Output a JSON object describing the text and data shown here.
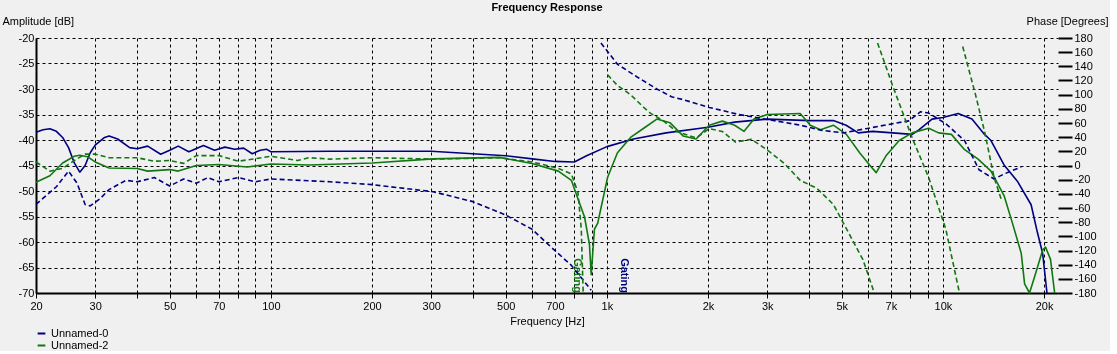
{
  "chart_data": {
    "type": "line",
    "title": "Frequency Response",
    "xlabel": "Frequency [Hz]",
    "ylabel": "Amplitude [dB]",
    "y2label": "Phase [Degrees]",
    "log": "x",
    "grid": true,
    "legend": "bottom",
    "xlim": [
      20,
      22000
    ],
    "xticks": [
      20,
      30,
      {
        "value": 40,
        "label": null
      },
      50,
      {
        "value": 60,
        "label": null
      },
      70,
      {
        "value": 80,
        "label": null
      },
      {
        "value": 90,
        "label": null
      },
      100,
      200,
      300,
      {
        "value": 400,
        "label": null
      },
      500,
      {
        "value": 600,
        "label": null
      },
      700,
      {
        "value": 800,
        "label": null
      },
      {
        "value": 900,
        "label": null
      },
      {
        "value": 1000,
        "label": "1k"
      },
      {
        "value": 2000,
        "label": "2k"
      },
      {
        "value": 3000,
        "label": "3k"
      },
      {
        "value": 4000,
        "label": null
      },
      {
        "value": 5000,
        "label": "5k"
      },
      {
        "value": 6000,
        "label": null
      },
      {
        "value": 7000,
        "label": "7k"
      },
      {
        "value": 8000,
        "label": null
      },
      {
        "value": 9000,
        "label": null
      },
      {
        "value": 10000,
        "label": "10k"
      },
      {
        "value": 20000,
        "label": "20k"
      }
    ],
    "ylim": [
      -70,
      -20
    ],
    "yticks": [
      -70,
      -65,
      -60,
      -55,
      -50,
      -45,
      -40,
      -35,
      -30,
      -25,
      -20
    ],
    "y2lim": [
      -180,
      180
    ],
    "y2ticks": [
      -180,
      -160,
      -140,
      -120,
      -100,
      -80,
      -60,
      -40,
      -20,
      0,
      20,
      40,
      60,
      80,
      100,
      120,
      140,
      160,
      180
    ],
    "annotations": [
      "Gating",
      "Gating"
    ],
    "series": [
      {
        "name": "Unnamed-0",
        "color": "#000080",
        "line_style": "solid",
        "x": [
          20,
          21,
          22,
          23,
          24,
          25,
          26,
          27,
          28,
          29,
          30,
          32,
          33,
          35,
          38,
          40,
          43,
          47,
          50,
          53,
          57,
          63,
          68,
          73,
          78,
          83,
          88,
          93,
          97,
          100,
          150,
          200,
          300,
          500,
          600,
          700,
          800,
          870,
          1000,
          1200,
          1500,
          2000,
          2400,
          3000,
          4030,
          4720,
          5150,
          5600,
          6180,
          7080,
          8100,
          8480,
          9280,
          10000,
          11100,
          12200,
          13300,
          13900,
          15200,
          16700,
          18300,
          19100,
          19800,
          20400
        ],
        "values": [
          -38.5,
          -38,
          -37.8,
          -38.3,
          -39.5,
          -41.5,
          -44.5,
          -46.3,
          -45,
          -42.5,
          -41,
          -39.5,
          -39.2,
          -39.8,
          -41.5,
          -41.7,
          -41.2,
          -42.8,
          -42,
          -41.2,
          -42.3,
          -41.1,
          -42,
          -41.4,
          -41.8,
          -41.6,
          -42.7,
          -42,
          -41.8,
          -42.3,
          -42.2,
          -42.2,
          -42.2,
          -43.1,
          -43.7,
          -44.2,
          -44.3,
          -43.1,
          -41.3,
          -39.8,
          -38.6,
          -37.5,
          -36.5,
          -35.9,
          -36.2,
          -36.2,
          -37.1,
          -38.6,
          -38.3,
          -38.6,
          -38.9,
          -38,
          -35.9,
          -35.6,
          -34.8,
          -35.9,
          -38.9,
          -40.1,
          -44.9,
          -48.2,
          -52.7,
          -58.1,
          -62.2,
          -70
        ]
      },
      {
        "color": "#000080",
        "line_style": "dashed",
        "axis": "y2",
        "x": [
          20,
          23,
          25,
          26.5,
          28,
          29,
          31,
          33,
          37,
          40,
          45,
          50,
          55,
          60,
          65,
          70,
          80,
          90,
          100,
          150,
          200,
          304,
          399,
          500,
          599,
          685,
          784,
          898,
          930,
          960,
          1075,
          1230,
          1408,
          1557,
          1685,
          2016,
          2470,
          3000,
          3760,
          4320,
          5050,
          5900,
          7080,
          7920,
          8580,
          9070,
          10200,
          11600,
          12800,
          14200,
          15200,
          17100
        ],
        "values": [
          -55,
          -30,
          -8,
          -25,
          -55,
          -57,
          -47,
          -34,
          -21,
          -23,
          -17,
          -29,
          -19,
          -25,
          -17,
          -23,
          -17,
          -23,
          -19,
          -23,
          -27,
          -37,
          -51,
          -70,
          -90,
          -116,
          -141,
          -176,
          null,
          173,
          143,
          125,
          108,
          97,
          93,
          82,
          72,
          65,
          57,
          50,
          46,
          52,
          59,
          63,
          76,
          74,
          59,
          35,
          -6,
          -19,
          -12,
          -2
        ]
      },
      {
        "name": "Unnamed-2",
        "color": "#117711",
        "line_style": "solid",
        "x": [
          20,
          22,
          24,
          26,
          27,
          28.5,
          30,
          33,
          40,
          43,
          50,
          53,
          60,
          70,
          85,
          100,
          130,
          200,
          304,
          478,
          599,
          717,
          784,
          820,
          858,
          887,
          898,
          918,
          939,
          1005,
          1075,
          1176,
          1287,
          1408,
          1540,
          1685,
          1843,
          2016,
          2206,
          2400,
          2560,
          2740,
          3000,
          3760,
          4030,
          4320,
          4720,
          5160,
          5650,
          6050,
          6330,
          6770,
          7410,
          8100,
          9070,
          9710,
          10600,
          11600,
          12700,
          13900,
          15200,
          16100,
          17100,
          17500,
          18100,
          18700,
          19800,
          20200,
          20900,
          21500
        ],
        "values": [
          -48.3,
          -47,
          -44.5,
          -43.2,
          -43,
          -43.3,
          -44.3,
          -45.5,
          -45.6,
          -46.1,
          -45.8,
          -46.1,
          -45,
          -44.8,
          -45.3,
          -44.7,
          -44.9,
          -44.5,
          -43.7,
          -43.4,
          -44.6,
          -46.1,
          -47.9,
          -51.5,
          -55.1,
          -60.4,
          -66.4,
          -57.5,
          -56.3,
          -47.3,
          -42.5,
          -39.5,
          -37.7,
          -35.9,
          -36.6,
          -39.2,
          -39.8,
          -37.1,
          -36.3,
          -37.1,
          -38.3,
          -35.9,
          -35,
          -34.8,
          -37.1,
          -38,
          -37.1,
          -38.9,
          -42.5,
          -44.9,
          -46.4,
          -43.1,
          -40.1,
          -38.6,
          -37.7,
          -38.6,
          -38.9,
          -41.9,
          -43.7,
          -46.1,
          -50.9,
          -56.3,
          -62.2,
          -68.2,
          -70,
          -67,
          -61.6,
          -61,
          -63.4,
          -70
        ]
      },
      {
        "color": "#117711",
        "line_style": "dashed",
        "axis": "y2",
        "x": [
          20,
          22,
          24,
          26,
          28,
          30,
          33,
          40,
          45,
          50,
          55,
          60,
          70,
          80,
          100,
          120,
          130,
          150,
          200,
          304,
          478,
          599,
          717,
          784,
          820,
          839,
          850,
          920,
          1005,
          1075,
          1176,
          1287,
          1346,
          1473,
          1612,
          1843,
          2016,
          2206,
          2414,
          2690,
          3000,
          3370,
          3760,
          4210,
          4720,
          5280,
          5780,
          6250,
          6320,
          6390,
          7080,
          8100,
          9070,
          10200,
          11200,
          11300,
          11450,
          12500,
          13300,
          14200,
          14900
        ],
        "values": [
          5,
          -8,
          -4,
          7,
          16,
          16,
          11,
          11,
          6,
          7,
          3,
          14,
          14,
          6,
          13,
          7,
          11,
          9,
          11,
          9,
          11,
          5,
          -4,
          -12,
          -38,
          -90,
          -180,
          null,
          128,
          113,
          100,
          82,
          74,
          63,
          48,
          39,
          52,
          48,
          33,
          37,
          22,
          3,
          -21,
          -32,
          -55,
          -98,
          -133,
          -180,
          null,
          173,
          113,
          39,
          -17,
          -90,
          -180,
          null,
          168,
          100,
          48,
          -17,
          -47
        ]
      }
    ]
  }
}
